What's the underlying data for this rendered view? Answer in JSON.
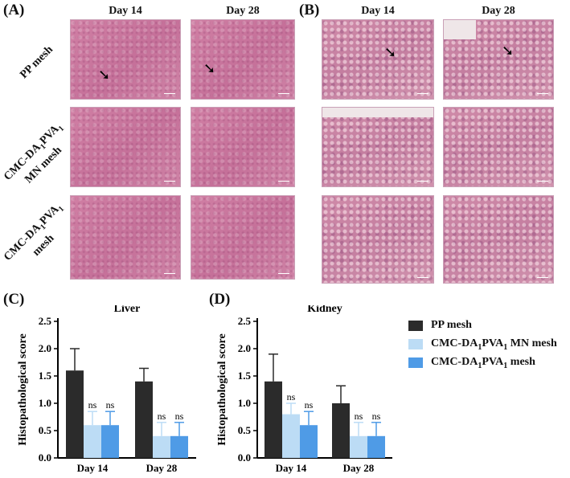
{
  "panels": {
    "A": "(A)",
    "B": "(B)",
    "C": "(C)",
    "D": "(D)"
  },
  "columns": {
    "day14": "Day 14",
    "day28": "Day 28"
  },
  "rows": {
    "pp": "PP mesh",
    "mn_top": "CMC-DA",
    "mn_sub1": "1",
    "mn_mid": "PVA",
    "mn_sub2": "1",
    "mn_bottom": "MN mesh",
    "plain_top": "CMC-DA",
    "plain_sub1": "1",
    "plain_mid": "PVA",
    "plain_sub2": "1",
    "plain_bottom": "mesh"
  },
  "arrows": {
    "glyph": "➘"
  },
  "legend": {
    "pp": "PP mesh",
    "mn_pre": "CMC-DA",
    "mn_s1": "1",
    "mn_mid": "PVA",
    "mn_s2": "1",
    "mn_post": " MN mesh",
    "plain_pre": "CMC-DA",
    "plain_s1": "1",
    "plain_mid": "PVA",
    "plain_s2": "1",
    "plain_post": " mesh",
    "colors": {
      "pp": "#2b2b2b",
      "mn": "#bcdcf5",
      "plain": "#4f9be6"
    }
  },
  "chart_data": [
    {
      "type": "bar",
      "title": "Liver",
      "ylabel": "Histopathological score",
      "categories": [
        "Day 14",
        "Day 28"
      ],
      "ylim": [
        0,
        2.5
      ],
      "yticks": [
        "0.0",
        "0.5",
        "1.0",
        "1.5",
        "2.0",
        "2.5"
      ],
      "series": [
        {
          "name": "PP mesh",
          "values": [
            1.6,
            1.4
          ],
          "errors": [
            0.4,
            0.24
          ]
        },
        {
          "name": "CMC-DA1PVA1 MN mesh",
          "values": [
            0.6,
            0.4
          ],
          "errors": [
            0.25,
            0.25
          ],
          "annotations": [
            "ns",
            "ns"
          ]
        },
        {
          "name": "CMC-DA1PVA1 mesh",
          "values": [
            0.6,
            0.4
          ],
          "errors": [
            0.25,
            0.25
          ],
          "annotations": [
            "ns",
            "ns"
          ]
        }
      ]
    },
    {
      "type": "bar",
      "title": "Kidney",
      "ylabel": "Histopathological score",
      "categories": [
        "Day 14",
        "Day 28"
      ],
      "ylim": [
        0,
        2.5
      ],
      "yticks": [
        "0.0",
        "0.5",
        "1.0",
        "1.5",
        "2.0",
        "2.5"
      ],
      "series": [
        {
          "name": "PP mesh",
          "values": [
            1.4,
            1.0
          ],
          "errors": [
            0.5,
            0.32
          ]
        },
        {
          "name": "CMC-DA1PVA1 MN mesh",
          "values": [
            0.8,
            0.4
          ],
          "errors": [
            0.2,
            0.25
          ],
          "annotations": [
            "ns",
            "ns"
          ]
        },
        {
          "name": "CMC-DA1PVA1 mesh",
          "values": [
            0.6,
            0.4
          ],
          "errors": [
            0.25,
            0.25
          ],
          "annotations": [
            "ns",
            "ns"
          ]
        }
      ]
    }
  ]
}
